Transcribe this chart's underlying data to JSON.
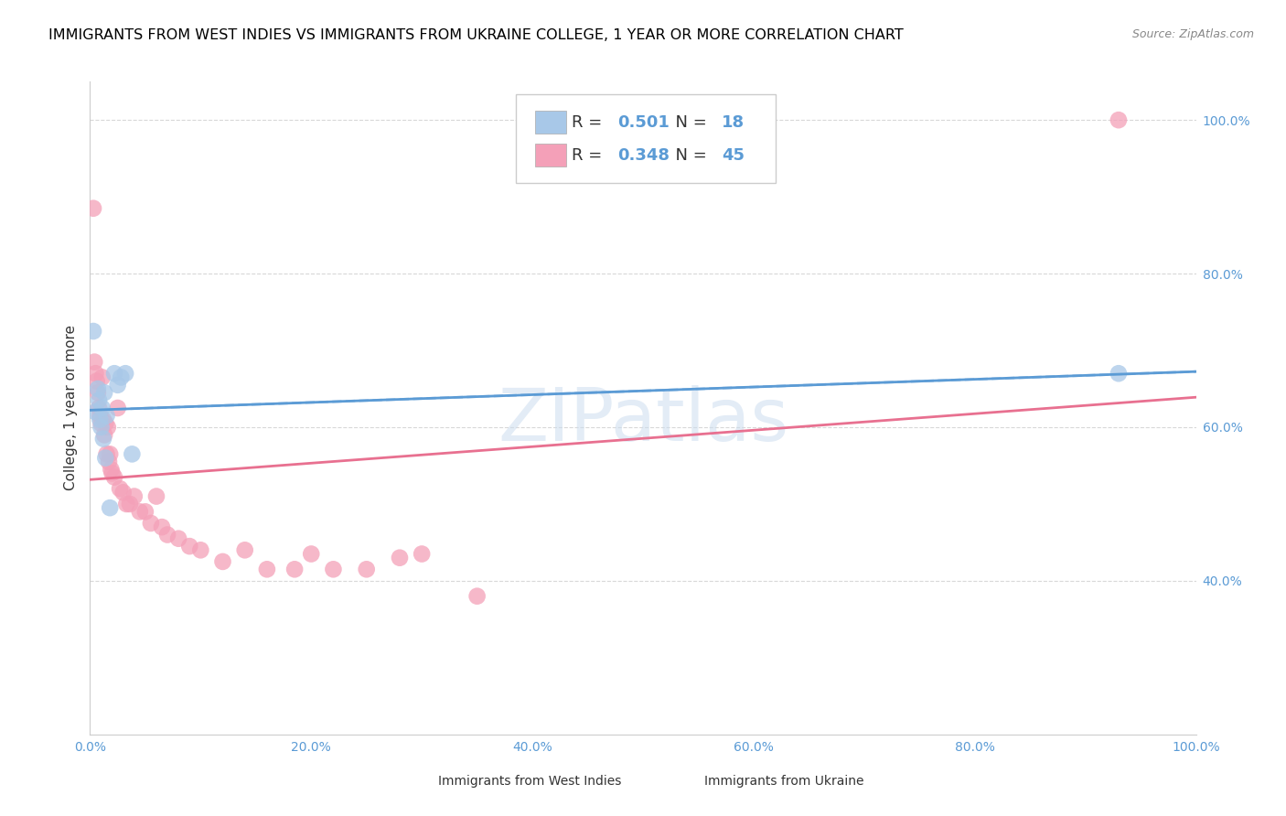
{
  "title": "IMMIGRANTS FROM WEST INDIES VS IMMIGRANTS FROM UKRAINE COLLEGE, 1 YEAR OR MORE CORRELATION CHART",
  "source": "Source: ZipAtlas.com",
  "ylabel": "College, 1 year or more",
  "legend_blue_R": "0.501",
  "legend_blue_N": "18",
  "legend_pink_R": "0.348",
  "legend_pink_N": "45",
  "blue_color": "#a8c8e8",
  "pink_color": "#f4a0b8",
  "blue_line_color": "#5b9bd5",
  "pink_line_color": "#e87090",
  "dashed_line_color": "#a8c8e8",
  "right_axis_color": "#5b9bd5",
  "grid_color": "#d8d8d8",
  "title_fontsize": 11.5,
  "source_fontsize": 9,
  "ylabel_fontsize": 11,
  "west_indies_x": [
    0.003,
    0.005,
    0.007,
    0.008,
    0.009,
    0.01,
    0.011,
    0.012,
    0.013,
    0.014,
    0.015,
    0.018,
    0.022,
    0.025,
    0.028,
    0.032,
    0.038,
    0.93
  ],
  "west_indies_y": [
    0.725,
    0.62,
    0.65,
    0.635,
    0.61,
    0.6,
    0.625,
    0.585,
    0.645,
    0.56,
    0.615,
    0.495,
    0.67,
    0.655,
    0.665,
    0.67,
    0.565,
    0.67
  ],
  "ukraine_x": [
    0.003,
    0.004,
    0.005,
    0.006,
    0.007,
    0.008,
    0.009,
    0.01,
    0.011,
    0.012,
    0.013,
    0.014,
    0.015,
    0.016,
    0.017,
    0.018,
    0.019,
    0.02,
    0.022,
    0.025,
    0.027,
    0.03,
    0.033,
    0.036,
    0.04,
    0.045,
    0.05,
    0.055,
    0.06,
    0.065,
    0.07,
    0.08,
    0.09,
    0.1,
    0.12,
    0.14,
    0.16,
    0.185,
    0.2,
    0.22,
    0.25,
    0.28,
    0.3,
    0.35,
    0.93
  ],
  "ukraine_y": [
    0.885,
    0.685,
    0.67,
    0.66,
    0.645,
    0.625,
    0.615,
    0.605,
    0.665,
    0.61,
    0.59,
    0.605,
    0.565,
    0.6,
    0.555,
    0.565,
    0.545,
    0.54,
    0.535,
    0.625,
    0.52,
    0.515,
    0.5,
    0.5,
    0.51,
    0.49,
    0.49,
    0.475,
    0.51,
    0.47,
    0.46,
    0.455,
    0.445,
    0.44,
    0.425,
    0.44,
    0.415,
    0.415,
    0.435,
    0.415,
    0.415,
    0.43,
    0.435,
    0.38,
    1.0
  ],
  "xlim": [
    0.0,
    1.0
  ],
  "ylim": [
    0.2,
    1.05
  ],
  "xticks": [
    0.0,
    0.2,
    0.4,
    0.6,
    0.8,
    1.0
  ],
  "xticklabels": [
    "0.0%",
    "20.0%",
    "40.0%",
    "60.0%",
    "80.0%",
    "100.0%"
  ],
  "yticks_right": [
    0.4,
    0.6,
    0.8,
    1.0
  ],
  "yticklabels_right": [
    "40.0%",
    "60.0%",
    "80.0%",
    "100.0%"
  ],
  "grid_yvals": [
    0.4,
    0.6,
    0.8,
    1.0
  ],
  "watermark_text": "ZIPatlas",
  "bottom_legend_labels": [
    "Immigrants from West Indies",
    "Immigrants from Ukraine"
  ]
}
